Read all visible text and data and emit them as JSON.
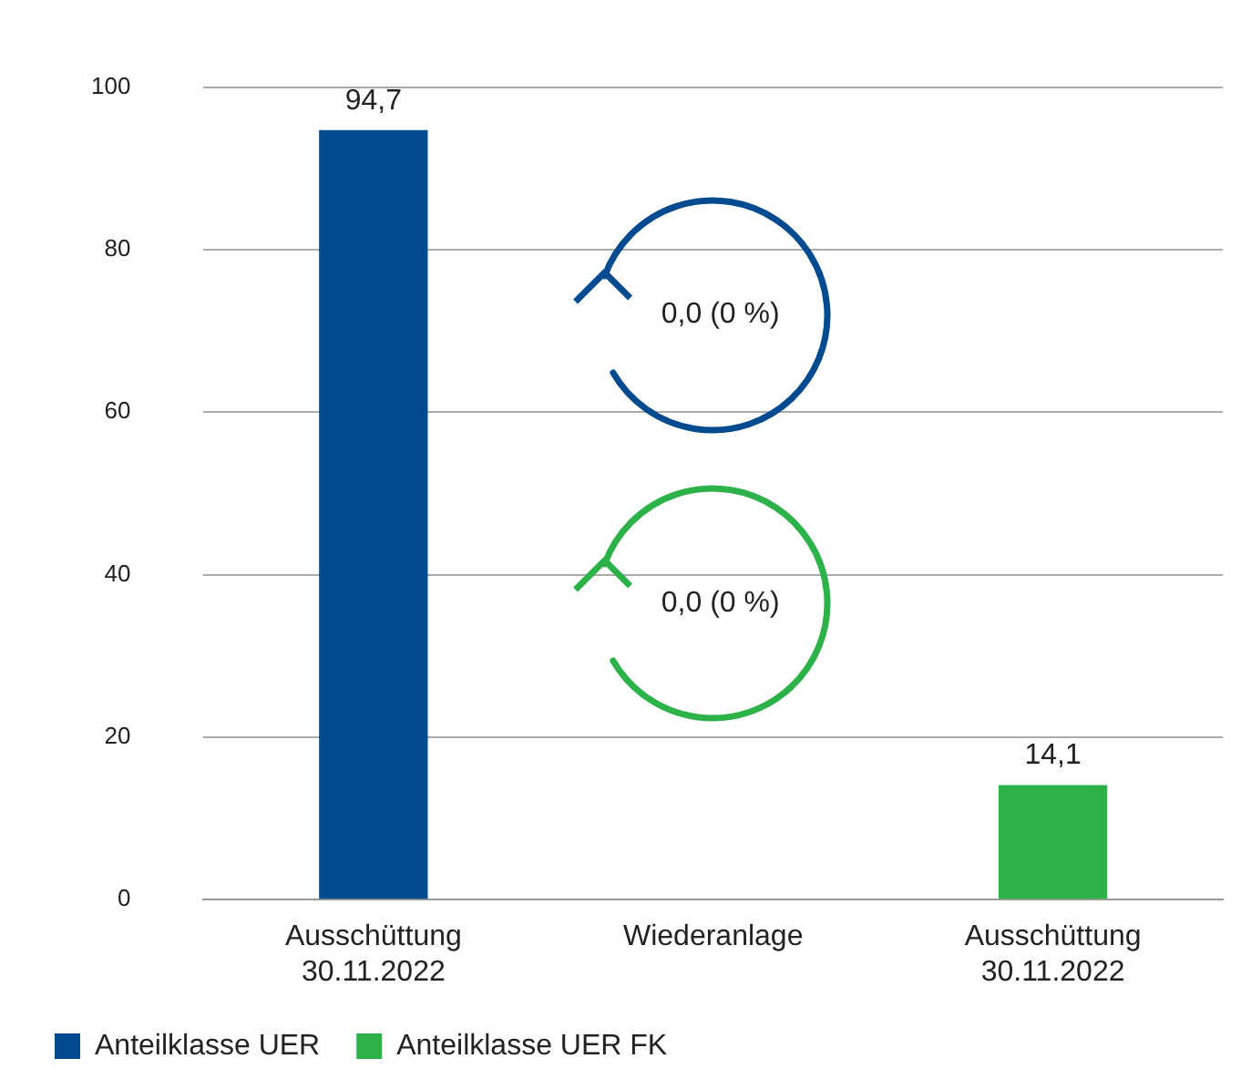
{
  "chart_data": {
    "type": "bar",
    "categories": [
      "Ausschüttung 30.11.2022",
      "Wiederanlage",
      "Ausschüttung 30.11.2022"
    ],
    "series": [
      {
        "name": "Anteilklasse UER",
        "color": "#004a8f",
        "values": [
          94.7,
          null,
          null
        ],
        "value_labels": [
          "94,7",
          null,
          null
        ]
      },
      {
        "name": "Anteilklasse UER FK",
        "color": "#2db24a",
        "values": [
          null,
          null,
          14.1
        ],
        "value_labels": [
          null,
          null,
          "14,1"
        ]
      }
    ],
    "annotations": [
      "0,0 (0 %)",
      "0,0 (0 %)"
    ],
    "ylim": [
      0,
      100
    ],
    "yticks": [
      0,
      20,
      40,
      60,
      80,
      100
    ],
    "grid": "y",
    "legend": "bottom left"
  }
}
